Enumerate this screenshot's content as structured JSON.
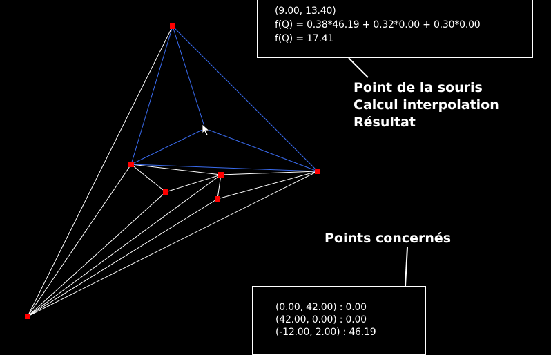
{
  "result_box": {
    "lines": [
      "(9.00, 13.40)",
      "f(Q) = 0.38*46.19 + 0.32*0.00 + 0.30*0.00",
      "f(Q) = 17.41"
    ]
  },
  "callout_mouse": {
    "lines": [
      "Point de la souris",
      "Calcul interpolation",
      "Résultat"
    ]
  },
  "callout_points": {
    "label": "Points concernés"
  },
  "points_box": {
    "lines": [
      "(0.00, 42.00) : 0.00",
      "(42.00, 0.00) : 0.00",
      "(-12.00, 2.00) : 46.19"
    ]
  },
  "colors": {
    "background": "#000000",
    "mesh_edge": "#ffffff",
    "highlight_edge": "#3a6cf0",
    "vertex": "#ff0000",
    "text": "#ffffff"
  },
  "icons": {
    "cursor": "mouse-pointer-icon"
  }
}
